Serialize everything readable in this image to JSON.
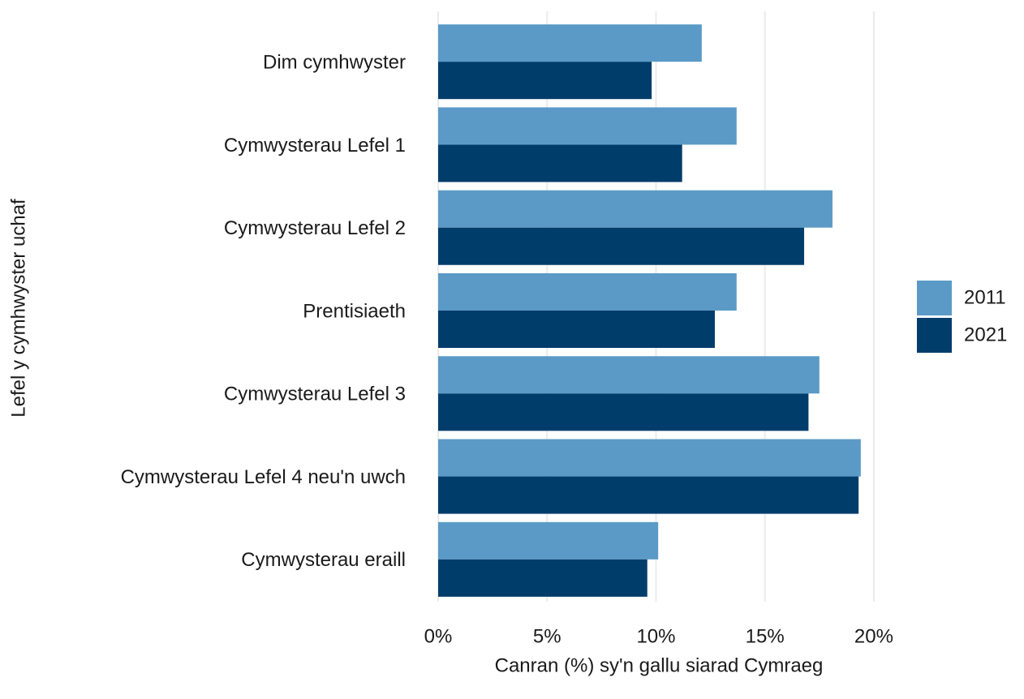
{
  "chart_data": {
    "type": "bar",
    "orientation": "horizontal",
    "x_label": "Canran (%) sy'n gallu siarad Cymraeg",
    "y_label": "Lefel y cymhwyster uchaf",
    "categories": [
      "Dim cymhwyster",
      "Cymwysterau Lefel 1",
      "Cymwysterau Lefel 2",
      "Prentisiaeth",
      "Cymwysterau Lefel 3",
      "Cymwysterau Lefel 4 neu'n uwch",
      "Cymwysterau eraill"
    ],
    "series": [
      {
        "name": "2011",
        "color": "#5b9ac6",
        "values": [
          12.1,
          13.7,
          18.1,
          13.7,
          17.5,
          19.4,
          10.1
        ]
      },
      {
        "name": "2021",
        "color": "#003d6b",
        "values": [
          9.8,
          11.2,
          16.8,
          12.7,
          17.0,
          19.3,
          9.6
        ]
      }
    ],
    "xlim": [
      0,
      20.3
    ],
    "xticks": [
      {
        "value": 0,
        "label": "0%"
      },
      {
        "value": 5,
        "label": "5%"
      },
      {
        "value": 10,
        "label": "10%"
      },
      {
        "value": 15,
        "label": "15%"
      },
      {
        "value": 20,
        "label": "20%"
      }
    ],
    "grid": true,
    "legend": "right"
  }
}
